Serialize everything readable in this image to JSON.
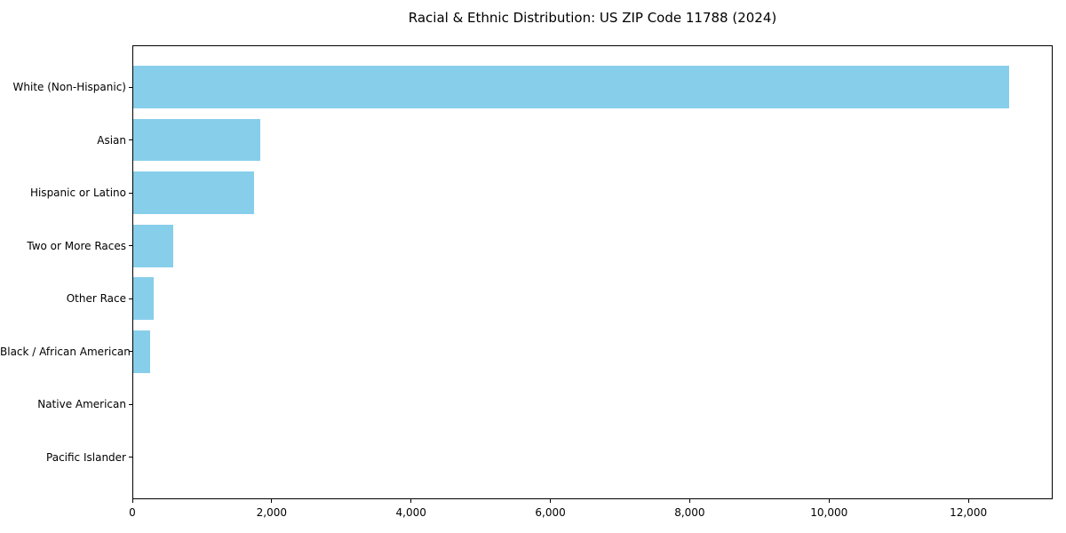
{
  "chart_data": {
    "type": "bar",
    "orientation": "horizontal",
    "title": "Racial & Ethnic Distribution: US ZIP Code 11788 (2024)",
    "xlabel": "",
    "ylabel": "",
    "categories": [
      "White (Non-Hispanic)",
      "Asian",
      "Hispanic or Latino",
      "Two or More Races",
      "Other Race",
      "Black / African American",
      "Native American",
      "Pacific Islander"
    ],
    "values": [
      12590,
      1840,
      1750,
      590,
      310,
      250,
      0,
      0
    ],
    "xlim": [
      0,
      13210
    ],
    "xticks": [
      {
        "value": 0,
        "label": "0"
      },
      {
        "value": 2000,
        "label": "2,000"
      },
      {
        "value": 4000,
        "label": "4,000"
      },
      {
        "value": 6000,
        "label": "6,000"
      },
      {
        "value": 8000,
        "label": "8,000"
      },
      {
        "value": 10000,
        "label": "10,000"
      },
      {
        "value": 12000,
        "label": "12,000"
      }
    ],
    "bar_color": "#87CEEB",
    "spine_color": "#000000",
    "text_color": "#000000",
    "background": "#ffffff",
    "grid": false,
    "legend": "none"
  }
}
